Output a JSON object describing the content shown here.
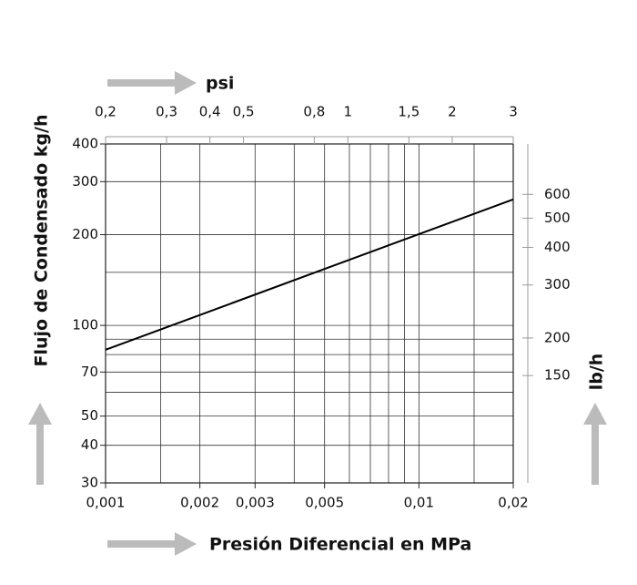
{
  "chart_data": {
    "type": "line",
    "xlabel": "Presión Diferencial en MPa",
    "ylabel": "Flujo de Condensado kg/h",
    "x2label": "psi",
    "y2label": "lb/h",
    "log_x": true,
    "log_y": true,
    "grid": true,
    "x": [
      0.001,
      0.02
    ],
    "series": [
      {
        "color": "#000000",
        "values": [
          83,
          262
        ]
      }
    ],
    "xlim": [
      0.001,
      0.02
    ],
    "xticks": [
      {
        "value": 0.001,
        "label": "0,001"
      },
      {
        "value": 0.002,
        "label": "0,002"
      },
      {
        "value": 0.003,
        "label": "0,003"
      },
      {
        "value": 0.005,
        "label": "0,005"
      },
      {
        "value": 0.01,
        "label": "0,01"
      },
      {
        "value": 0.02,
        "label": "0,02"
      }
    ],
    "xgrid": [
      0.0015,
      0.002,
      0.003,
      0.004,
      0.005,
      0.006,
      0.007,
      0.008,
      0.009,
      0.01,
      0.015
    ],
    "ylim": [
      30,
      400
    ],
    "yticks": [
      30,
      40,
      50,
      70,
      100,
      200,
      300,
      400
    ],
    "ygrid": [
      40,
      50,
      60,
      70,
      80,
      90,
      100,
      150,
      200,
      300
    ],
    "x2lim": [
      0.2,
      3
    ],
    "x2ticks": [
      {
        "value": 0.2,
        "label": "0,2"
      },
      {
        "value": 0.3,
        "label": "0,3"
      },
      {
        "value": 0.4,
        "label": "0,4"
      },
      {
        "value": 0.5,
        "label": "0,5"
      },
      {
        "value": 0.8,
        "label": "0,8"
      },
      1,
      {
        "value": 1.5,
        "label": "1,5"
      },
      2,
      3
    ],
    "y2lim": [
      66,
      882
    ],
    "y2ticks": [
      150,
      200,
      300,
      400,
      500,
      600
    ]
  }
}
